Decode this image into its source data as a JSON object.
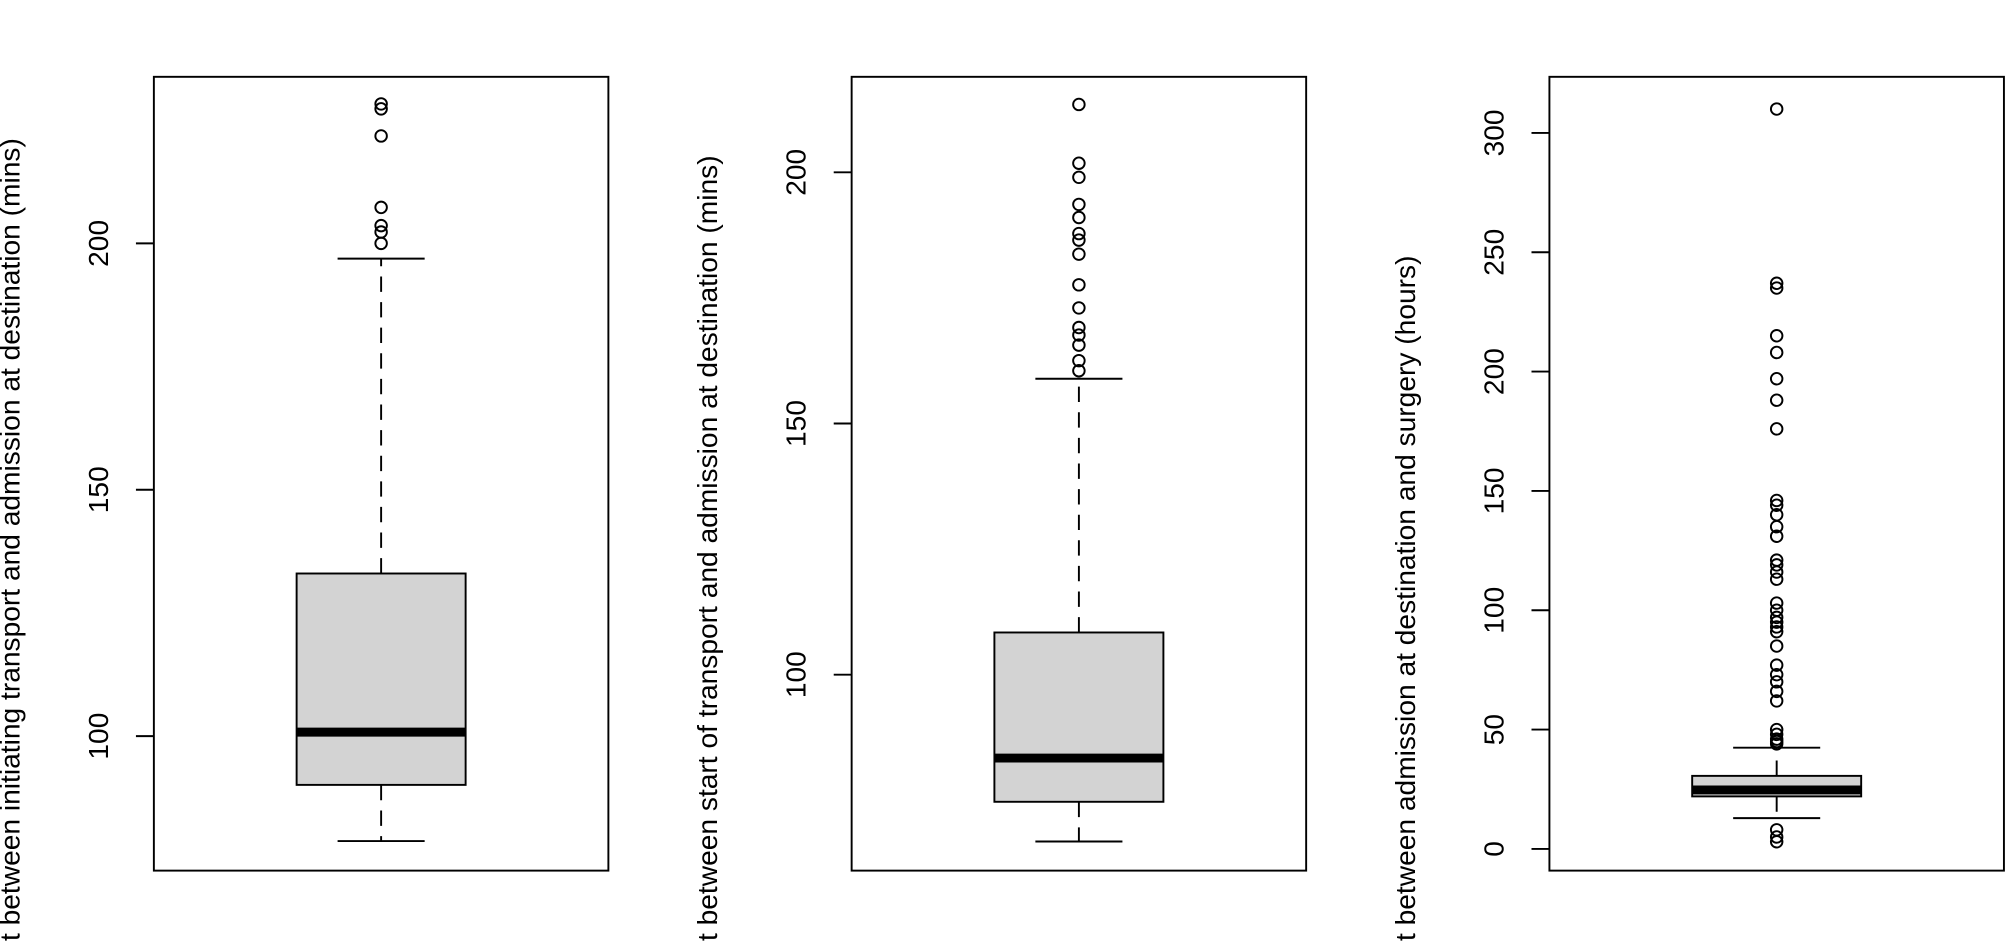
{
  "chart_data": [
    {
      "type": "box",
      "ylabel": "t between initiating transport and admission at destination (mins)",
      "ylim": [
        72.7,
        233.8
      ],
      "yticks": [
        100,
        150,
        200
      ],
      "box": {
        "whislo": 78.7,
        "q1": 90.1,
        "med": 100.8,
        "q3": 133,
        "whishi": 196.9
      },
      "outliers": [
        228.3,
        227.3,
        221.8,
        207.3,
        203.6,
        202.3,
        200
      ]
    },
    {
      "type": "box",
      "ylabel": "t between start of transport and admission at destination (mins)",
      "ylim": [
        61,
        219
      ],
      "yticks": [
        100,
        150,
        200
      ],
      "box": {
        "whislo": 66.8,
        "q1": 74.7,
        "med": 83.4,
        "q3": 108.4,
        "whishi": 158.9
      },
      "outliers": [
        213.5,
        201.8,
        199,
        193.6,
        191,
        187.8,
        186.5,
        183.7,
        177.6,
        173,
        169.1,
        167.6,
        165.6,
        162.5,
        160.5
      ]
    },
    {
      "type": "box",
      "ylabel": "t between admission at destination and surgery (hours)",
      "ylim": [
        -9.1,
        323.5
      ],
      "yticks": [
        0,
        50,
        100,
        150,
        200,
        250,
        300
      ],
      "box": {
        "whislo": 12.9,
        "q1": 22,
        "med": 24.7,
        "q3": 30.6,
        "whishi": 42.4
      },
      "outliers": [
        310,
        237,
        235,
        215,
        208,
        197,
        188,
        176,
        146,
        144,
        140,
        135,
        131,
        121,
        119,
        116,
        113,
        103,
        100,
        97,
        95,
        93,
        91,
        85,
        77,
        73,
        70,
        66,
        62,
        50,
        48,
        46,
        45,
        44,
        8,
        5,
        3
      ]
    }
  ]
}
